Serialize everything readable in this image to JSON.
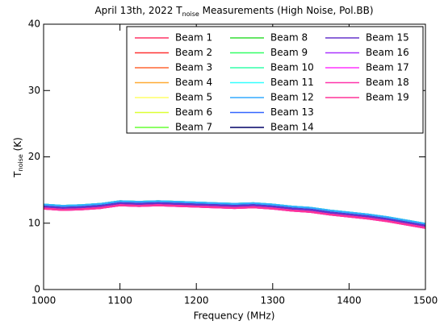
{
  "chart_data": {
    "type": "line",
    "title": "April 13th, 2022 T",
    "title_subscript": "noise",
    "title_suffix": " Measurements (High Noise, Pol.BB)",
    "x_label": "Frequency (MHz)",
    "y_label": "T",
    "y_label_subscript": "noise",
    "y_label_suffix": " (K)",
    "xlim": [
      1000,
      1500
    ],
    "xticks": [
      1000,
      1100,
      1200,
      1300,
      1400,
      1500
    ],
    "ylim": [
      0,
      40
    ],
    "yticks": [
      0,
      10,
      20,
      30,
      40
    ],
    "legend": "top-right",
    "x": [
      1000,
      1025,
      1050,
      1075,
      1100,
      1125,
      1150,
      1175,
      1200,
      1225,
      1250,
      1275,
      1300,
      1325,
      1350,
      1375,
      1400,
      1425,
      1450,
      1475,
      1500
    ],
    "series": [
      {
        "name": "Beam 1",
        "color": "#ff3366",
        "values": [
          12.5,
          12.3,
          12.4,
          12.6,
          13.0,
          12.9,
          13.0,
          12.9,
          12.8,
          12.7,
          12.6,
          12.7,
          12.5,
          12.2,
          12.0,
          11.6,
          11.3,
          11.0,
          10.6,
          10.1,
          9.6
        ]
      },
      {
        "name": "Beam 2",
        "color": "#ff3333",
        "values": [
          12.5,
          12.3,
          12.4,
          12.6,
          13.0,
          12.9,
          13.0,
          12.9,
          12.8,
          12.7,
          12.6,
          12.7,
          12.5,
          12.2,
          12.0,
          11.6,
          11.3,
          11.0,
          10.6,
          10.1,
          9.6
        ]
      },
      {
        "name": "Beam 3",
        "color": "#ff6633",
        "values": [
          12.5,
          12.3,
          12.4,
          12.6,
          13.0,
          12.9,
          13.0,
          12.9,
          12.8,
          12.7,
          12.6,
          12.7,
          12.5,
          12.2,
          12.0,
          11.6,
          11.3,
          11.0,
          10.6,
          10.1,
          9.6
        ]
      },
      {
        "name": "Beam 4",
        "color": "#ffaa33",
        "values": [
          12.5,
          12.3,
          12.4,
          12.6,
          13.0,
          12.9,
          13.0,
          12.9,
          12.8,
          12.7,
          12.6,
          12.7,
          12.5,
          12.2,
          12.0,
          11.6,
          11.3,
          11.0,
          10.6,
          10.1,
          9.6
        ]
      },
      {
        "name": "Beam 5",
        "color": "#ffff66",
        "values": [
          12.5,
          12.3,
          12.4,
          12.6,
          13.0,
          12.9,
          13.0,
          12.9,
          12.8,
          12.7,
          12.6,
          12.7,
          12.5,
          12.2,
          12.0,
          11.6,
          11.3,
          11.0,
          10.6,
          10.1,
          9.6
        ]
      },
      {
        "name": "Beam 6",
        "color": "#ddff33",
        "values": [
          12.5,
          12.3,
          12.4,
          12.6,
          13.0,
          12.9,
          13.0,
          12.9,
          12.8,
          12.7,
          12.6,
          12.7,
          12.5,
          12.2,
          12.0,
          11.6,
          11.3,
          11.0,
          10.6,
          10.1,
          9.6
        ]
      },
      {
        "name": "Beam 7",
        "color": "#66ff33",
        "values": [
          12.8,
          12.6,
          12.7,
          12.9,
          13.3,
          13.2,
          13.3,
          13.2,
          13.1,
          13.0,
          12.9,
          13.0,
          12.8,
          12.5,
          12.3,
          11.9,
          11.6,
          11.3,
          10.9,
          10.4,
          9.9
        ]
      },
      {
        "name": "Beam 8",
        "color": "#33dd33",
        "values": [
          12.8,
          12.6,
          12.7,
          12.9,
          13.3,
          13.2,
          13.3,
          13.2,
          13.1,
          13.0,
          12.9,
          13.0,
          12.8,
          12.5,
          12.3,
          11.9,
          11.6,
          11.3,
          10.9,
          10.4,
          9.9
        ]
      },
      {
        "name": "Beam 9",
        "color": "#33ff66",
        "values": [
          12.8,
          12.6,
          12.7,
          12.9,
          13.3,
          13.2,
          13.3,
          13.2,
          13.1,
          13.0,
          12.9,
          13.0,
          12.8,
          12.5,
          12.3,
          11.9,
          11.6,
          11.3,
          10.9,
          10.4,
          9.9
        ]
      },
      {
        "name": "Beam 10",
        "color": "#33ffaa",
        "values": [
          12.8,
          12.6,
          12.7,
          12.9,
          13.3,
          13.2,
          13.3,
          13.2,
          13.1,
          13.0,
          12.9,
          13.0,
          12.8,
          12.5,
          12.3,
          11.9,
          11.6,
          11.3,
          10.9,
          10.4,
          9.9
        ]
      },
      {
        "name": "Beam 11",
        "color": "#33ffff",
        "values": [
          12.8,
          12.6,
          12.7,
          12.9,
          13.3,
          13.2,
          13.3,
          13.2,
          13.1,
          13.0,
          12.9,
          13.0,
          12.8,
          12.5,
          12.3,
          11.9,
          11.6,
          11.3,
          10.9,
          10.4,
          9.9
        ]
      },
      {
        "name": "Beam 12",
        "color": "#33aaff",
        "values": [
          12.8,
          12.6,
          12.7,
          12.9,
          13.3,
          13.2,
          13.3,
          13.2,
          13.1,
          13.0,
          12.9,
          13.0,
          12.8,
          12.5,
          12.3,
          11.9,
          11.6,
          11.3,
          10.9,
          10.4,
          9.9
        ]
      },
      {
        "name": "Beam 13",
        "color": "#3366ff",
        "values": [
          12.5,
          12.3,
          12.4,
          12.6,
          13.0,
          12.9,
          13.0,
          12.9,
          12.8,
          12.7,
          12.6,
          12.7,
          12.5,
          12.2,
          12.0,
          11.6,
          11.3,
          11.0,
          10.6,
          10.1,
          9.6
        ]
      },
      {
        "name": "Beam 14",
        "color": "#000066",
        "values": [
          12.5,
          12.3,
          12.4,
          12.6,
          13.0,
          12.9,
          13.0,
          12.9,
          12.8,
          12.7,
          12.6,
          12.7,
          12.5,
          12.2,
          12.0,
          11.6,
          11.3,
          11.0,
          10.6,
          10.1,
          9.6
        ]
      },
      {
        "name": "Beam 15",
        "color": "#6633cc",
        "values": [
          12.5,
          12.3,
          12.4,
          12.6,
          13.0,
          12.9,
          13.0,
          12.9,
          12.8,
          12.7,
          12.6,
          12.7,
          12.5,
          12.2,
          12.0,
          11.6,
          11.3,
          11.0,
          10.6,
          10.1,
          9.6
        ]
      },
      {
        "name": "Beam 16",
        "color": "#aa33ff",
        "values": [
          12.2,
          12.0,
          12.1,
          12.3,
          12.7,
          12.6,
          12.7,
          12.6,
          12.5,
          12.4,
          12.3,
          12.4,
          12.2,
          11.9,
          11.7,
          11.3,
          11.0,
          10.7,
          10.3,
          9.8,
          9.3
        ]
      },
      {
        "name": "Beam 17",
        "color": "#ff33ff",
        "values": [
          12.2,
          12.0,
          12.1,
          12.3,
          12.7,
          12.6,
          12.7,
          12.6,
          12.5,
          12.4,
          12.3,
          12.4,
          12.2,
          11.9,
          11.7,
          11.3,
          11.0,
          10.7,
          10.3,
          9.8,
          9.3
        ]
      },
      {
        "name": "Beam 18",
        "color": "#ff33aa",
        "values": [
          12.2,
          12.0,
          12.1,
          12.3,
          12.7,
          12.6,
          12.7,
          12.6,
          12.5,
          12.4,
          12.3,
          12.4,
          12.2,
          11.9,
          11.7,
          11.3,
          11.0,
          10.7,
          10.3,
          9.8,
          9.3
        ]
      },
      {
        "name": "Beam 19",
        "color": "#ff3399",
        "values": [
          12.2,
          12.0,
          12.1,
          12.3,
          12.7,
          12.6,
          12.7,
          12.6,
          12.5,
          12.4,
          12.3,
          12.4,
          12.2,
          11.9,
          11.7,
          11.3,
          11.0,
          10.7,
          10.3,
          9.8,
          9.3
        ]
      }
    ]
  }
}
